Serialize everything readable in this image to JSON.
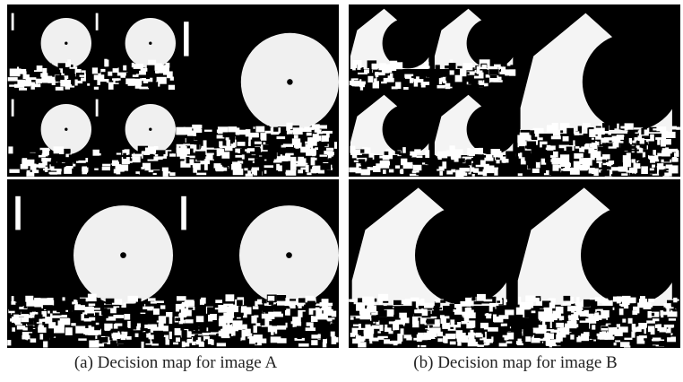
{
  "figure": {
    "panels": [
      {
        "caption": "(a) Decision map for image A"
      },
      {
        "caption": "(b) Decision map for image B"
      }
    ]
  }
}
